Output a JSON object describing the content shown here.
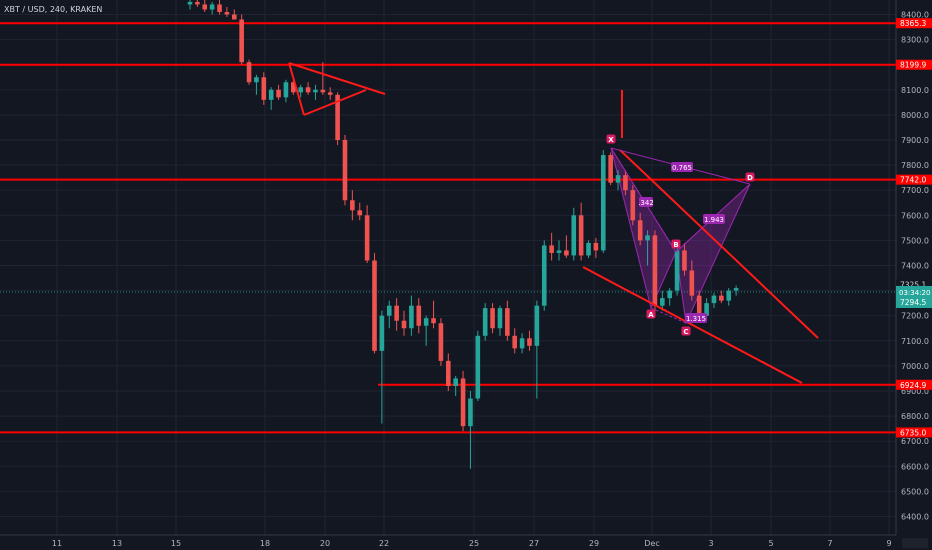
{
  "chart_data": {
    "type": "candlestick",
    "symbol_label": "XBT / USD, 240, KRAKEN",
    "y_axis": {
      "min": 6340,
      "max": 8480,
      "ticks": [
        6400,
        6500,
        6600,
        6700,
        6800,
        6900,
        7000,
        7100,
        7200,
        7300,
        7400,
        7500,
        7600,
        7700,
        7800,
        7900,
        8000,
        8100,
        8200,
        8300,
        8400
      ]
    },
    "x_axis": {
      "labels": [
        "11",
        "13",
        "15",
        "18",
        "20",
        "22",
        "25",
        "27",
        "29",
        "Dec",
        "3",
        "5",
        "7",
        "9"
      ]
    },
    "horizontal_lines": [
      {
        "price": 8365.3,
        "label": "8365.3"
      },
      {
        "price": 8199.9,
        "label": "8199.9"
      },
      {
        "price": 7742.0,
        "label": "7742.0"
      },
      {
        "price": 6924.9,
        "label": "6924.9"
      },
      {
        "price": 6735.0,
        "label": "6735.0"
      }
    ],
    "last_price": {
      "value": 7294.5,
      "label": "7294.5"
    },
    "price_marker": {
      "value": 7325.1,
      "label": "7325.1"
    },
    "countdown": "03:34:20",
    "pattern": {
      "points": [
        "X",
        "A",
        "B",
        "C",
        "D"
      ],
      "ratios": [
        "0.765",
        "1.943",
        "1.315",
        ".342"
      ]
    },
    "candles": [
      [
        8440,
        8470,
        8420,
        8450
      ],
      [
        8450,
        8460,
        8430,
        8440
      ],
      [
        8440,
        8470,
        8410,
        8420
      ],
      [
        8420,
        8450,
        8400,
        8440
      ],
      [
        8440,
        8480,
        8400,
        8410
      ],
      [
        8410,
        8430,
        8390,
        8400
      ],
      [
        8400,
        8420,
        8380,
        8380
      ],
      [
        8380,
        8400,
        8200,
        8210
      ],
      [
        8210,
        8220,
        8120,
        8130
      ],
      [
        8130,
        8160,
        8080,
        8150
      ],
      [
        8150,
        8170,
        8040,
        8060
      ],
      [
        8060,
        8110,
        8020,
        8100
      ],
      [
        8100,
        8120,
        8060,
        8070
      ],
      [
        8070,
        8140,
        8050,
        8130
      ],
      [
        8130,
        8150,
        8080,
        8090
      ],
      [
        8090,
        8120,
        8070,
        8110
      ],
      [
        8110,
        8130,
        8080,
        8090
      ],
      [
        8090,
        8120,
        8060,
        8100
      ],
      [
        8100,
        8210,
        8080,
        8090
      ],
      [
        8090,
        8110,
        8060,
        8080
      ],
      [
        8080,
        8090,
        7880,
        7900
      ],
      [
        7900,
        7920,
        7640,
        7660
      ],
      [
        7660,
        7700,
        7580,
        7620
      ],
      [
        7620,
        7650,
        7580,
        7600
      ],
      [
        7600,
        7640,
        7410,
        7420
      ],
      [
        7420,
        7450,
        7050,
        7060
      ],
      [
        7060,
        7220,
        6770,
        7200
      ],
      [
        7200,
        7260,
        7150,
        7240
      ],
      [
        7240,
        7270,
        7140,
        7180
      ],
      [
        7180,
        7220,
        7120,
        7150
      ],
      [
        7150,
        7280,
        7120,
        7240
      ],
      [
        7240,
        7270,
        7130,
        7160
      ],
      [
        7160,
        7200,
        7080,
        7190
      ],
      [
        7190,
        7260,
        7150,
        7170
      ],
      [
        7170,
        7190,
        7000,
        7020
      ],
      [
        7020,
        7050,
        6900,
        6920
      ],
      [
        6920,
        6960,
        6880,
        6950
      ],
      [
        6950,
        6980,
        6740,
        6760
      ],
      [
        6760,
        6900,
        6590,
        6870
      ],
      [
        6870,
        7140,
        6860,
        7120
      ],
      [
        7120,
        7250,
        7100,
        7230
      ],
      [
        7230,
        7250,
        7130,
        7150
      ],
      [
        7150,
        7240,
        7120,
        7230
      ],
      [
        7230,
        7260,
        7100,
        7120
      ],
      [
        7120,
        7150,
        7050,
        7070
      ],
      [
        7070,
        7130,
        7050,
        7110
      ],
      [
        7110,
        7140,
        7060,
        7080
      ],
      [
        7080,
        7260,
        6870,
        7240
      ],
      [
        7240,
        7500,
        7220,
        7480
      ],
      [
        7480,
        7530,
        7420,
        7450
      ],
      [
        7450,
        7500,
        7420,
        7460
      ],
      [
        7460,
        7520,
        7430,
        7440
      ],
      [
        7440,
        7630,
        7420,
        7600
      ],
      [
        7600,
        7650,
        7420,
        7440
      ],
      [
        7440,
        7500,
        7430,
        7490
      ],
      [
        7490,
        7510,
        7430,
        7460
      ],
      [
        7460,
        7860,
        7450,
        7840
      ],
      [
        7840,
        7850,
        7720,
        7730
      ],
      [
        7730,
        7780,
        7700,
        7760
      ],
      [
        7760,
        7780,
        7680,
        7700
      ],
      [
        7700,
        7720,
        7560,
        7580
      ],
      [
        7580,
        7610,
        7480,
        7500
      ],
      [
        7500,
        7540,
        7400,
        7520
      ],
      [
        7520,
        7540,
        7220,
        7240
      ],
      [
        7240,
        7300,
        7220,
        7270
      ],
      [
        7270,
        7310,
        7240,
        7300
      ],
      [
        7300,
        7480,
        7280,
        7460
      ],
      [
        7460,
        7490,
        7360,
        7380
      ],
      [
        7380,
        7420,
        7260,
        7280
      ],
      [
        7280,
        7300,
        7180,
        7200
      ],
      [
        7200,
        7270,
        7180,
        7250
      ],
      [
        7250,
        7290,
        7230,
        7280
      ],
      [
        7280,
        7300,
        7250,
        7260
      ],
      [
        7260,
        7310,
        7240,
        7300
      ],
      [
        7300,
        7320,
        7280,
        7310
      ]
    ]
  }
}
